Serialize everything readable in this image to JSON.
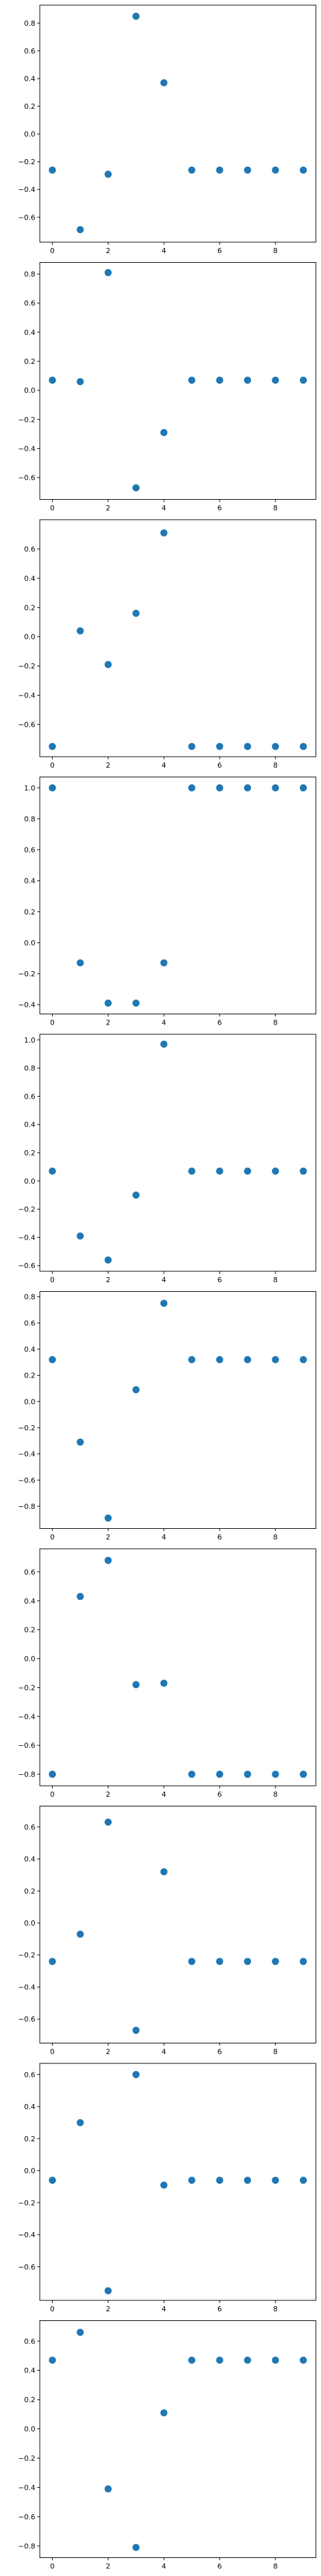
{
  "figure": {
    "background": "#ffffff",
    "marker_color": "#1f77b4",
    "axes_color": "#000000",
    "layout": "10 vertically stacked scatter subplots"
  },
  "chart_data": [
    {
      "type": "scatter",
      "title": "",
      "xlabel": "",
      "ylabel": "",
      "grid": false,
      "legend": "none",
      "xlim": [
        -0.45,
        9.45
      ],
      "ylim": [
        -0.78,
        0.93
      ],
      "xticks": [
        0,
        2,
        4,
        6,
        8
      ],
      "xtick_labels": [
        "0",
        "2",
        "4",
        "6",
        "8"
      ],
      "yticks": [
        -0.6,
        -0.4,
        -0.2,
        0.0,
        0.2,
        0.4,
        0.6,
        0.8
      ],
      "ytick_labels": [
        "−0.6",
        "−0.4",
        "−0.2",
        "0.0",
        "0.2",
        "0.4",
        "0.6",
        "0.8"
      ],
      "series": [
        {
          "x": [
            0,
            1,
            2,
            3,
            4,
            5,
            6,
            7,
            8,
            9
          ],
          "y": [
            -0.26,
            -0.69,
            -0.29,
            0.85,
            0.37,
            -0.26,
            -0.26,
            -0.26,
            -0.26,
            -0.26
          ]
        }
      ]
    },
    {
      "type": "scatter",
      "title": "",
      "xlabel": "",
      "ylabel": "",
      "grid": false,
      "legend": "none",
      "xlim": [
        -0.45,
        9.45
      ],
      "ylim": [
        -0.75,
        0.88
      ],
      "xticks": [
        0,
        2,
        4,
        6,
        8
      ],
      "xtick_labels": [
        "0",
        "2",
        "4",
        "6",
        "8"
      ],
      "yticks": [
        -0.6,
        -0.4,
        -0.2,
        0.0,
        0.2,
        0.4,
        0.6,
        0.8
      ],
      "ytick_labels": [
        "−0.6",
        "−0.4",
        "−0.2",
        "0.0",
        "0.2",
        "0.4",
        "0.6",
        "0.8"
      ],
      "series": [
        {
          "x": [
            0,
            1,
            2,
            3,
            4,
            5,
            6,
            7,
            8,
            9
          ],
          "y": [
            0.07,
            0.06,
            0.81,
            -0.67,
            -0.29,
            0.07,
            0.07,
            0.07,
            0.07,
            0.07
          ]
        }
      ]
    },
    {
      "type": "scatter",
      "title": "",
      "xlabel": "",
      "ylabel": "",
      "grid": false,
      "legend": "none",
      "xlim": [
        -0.45,
        9.45
      ],
      "ylim": [
        -0.82,
        0.8
      ],
      "xticks": [
        0,
        2,
        4,
        6,
        8
      ],
      "xtick_labels": [
        "0",
        "2",
        "4",
        "6",
        "8"
      ],
      "yticks": [
        -0.6,
        -0.4,
        -0.2,
        0.0,
        0.2,
        0.4,
        0.6
      ],
      "ytick_labels": [
        "−0.6",
        "−0.4",
        "−0.2",
        "0.0",
        "0.2",
        "0.4",
        "0.6"
      ],
      "series": [
        {
          "x": [
            0,
            1,
            2,
            3,
            4,
            5,
            6,
            7,
            8,
            9
          ],
          "y": [
            -0.75,
            0.04,
            -0.19,
            0.16,
            0.71,
            -0.75,
            -0.75,
            -0.75,
            -0.75,
            -0.75
          ]
        }
      ]
    },
    {
      "type": "scatter",
      "title": "",
      "xlabel": "",
      "ylabel": "",
      "grid": false,
      "legend": "none",
      "xlim": [
        -0.45,
        9.45
      ],
      "ylim": [
        -0.46,
        1.07
      ],
      "xticks": [
        0,
        2,
        4,
        6,
        8
      ],
      "xtick_labels": [
        "0",
        "2",
        "4",
        "6",
        "8"
      ],
      "yticks": [
        -0.4,
        -0.2,
        0.0,
        0.2,
        0.4,
        0.6,
        0.8,
        1.0
      ],
      "ytick_labels": [
        "−0.4",
        "−0.2",
        "0.0",
        "0.2",
        "0.4",
        "0.6",
        "0.8",
        "1.0"
      ],
      "series": [
        {
          "x": [
            0,
            1,
            2,
            3,
            4,
            5,
            6,
            7,
            8,
            9
          ],
          "y": [
            1.0,
            -0.13,
            -0.39,
            -0.39,
            -0.13,
            1.0,
            1.0,
            1.0,
            1.0,
            1.0
          ]
        }
      ]
    },
    {
      "type": "scatter",
      "title": "",
      "xlabel": "",
      "ylabel": "",
      "grid": false,
      "legend": "none",
      "xlim": [
        -0.45,
        9.45
      ],
      "ylim": [
        -0.64,
        1.04
      ],
      "xticks": [
        0,
        2,
        4,
        6,
        8
      ],
      "xtick_labels": [
        "0",
        "2",
        "4",
        "6",
        "8"
      ],
      "yticks": [
        -0.6,
        -0.4,
        -0.2,
        0.0,
        0.2,
        0.4,
        0.6,
        0.8,
        1.0
      ],
      "ytick_labels": [
        "−0.6",
        "−0.4",
        "−0.2",
        "0.0",
        "0.2",
        "0.4",
        "0.6",
        "0.8",
        "1.0"
      ],
      "series": [
        {
          "x": [
            0,
            1,
            2,
            3,
            4,
            5,
            6,
            7,
            8,
            9
          ],
          "y": [
            0.07,
            -0.39,
            -0.56,
            -0.1,
            0.97,
            0.07,
            0.07,
            0.07,
            0.07,
            0.07
          ]
        }
      ]
    },
    {
      "type": "scatter",
      "title": "",
      "xlabel": "",
      "ylabel": "",
      "grid": false,
      "legend": "none",
      "xlim": [
        -0.45,
        9.45
      ],
      "ylim": [
        -0.97,
        0.84
      ],
      "xticks": [
        0,
        2,
        4,
        6,
        8
      ],
      "xtick_labels": [
        "0",
        "2",
        "4",
        "6",
        "8"
      ],
      "yticks": [
        -0.8,
        -0.6,
        -0.4,
        -0.2,
        0.0,
        0.2,
        0.4,
        0.6,
        0.8
      ],
      "ytick_labels": [
        "−0.8",
        "−0.6",
        "−0.4",
        "−0.2",
        "0.0",
        "0.2",
        "0.4",
        "0.6",
        "0.8"
      ],
      "series": [
        {
          "x": [
            0,
            1,
            2,
            3,
            4,
            5,
            6,
            7,
            8,
            9
          ],
          "y": [
            0.32,
            -0.31,
            -0.89,
            0.09,
            0.75,
            0.32,
            0.32,
            0.32,
            0.32,
            0.32
          ]
        }
      ]
    },
    {
      "type": "scatter",
      "title": "",
      "xlabel": "",
      "ylabel": "",
      "grid": false,
      "legend": "none",
      "xlim": [
        -0.45,
        9.45
      ],
      "ylim": [
        -0.88,
        0.76
      ],
      "xticks": [
        0,
        2,
        4,
        6,
        8
      ],
      "xtick_labels": [
        "0",
        "2",
        "4",
        "6",
        "8"
      ],
      "yticks": [
        -0.8,
        -0.6,
        -0.4,
        -0.2,
        0.0,
        0.2,
        0.4,
        0.6
      ],
      "ytick_labels": [
        "−0.8",
        "−0.6",
        "−0.4",
        "−0.2",
        "0.0",
        "0.2",
        "0.4",
        "0.6"
      ],
      "series": [
        {
          "x": [
            0,
            1,
            2,
            3,
            4,
            5,
            6,
            7,
            8,
            9
          ],
          "y": [
            -0.8,
            0.43,
            0.68,
            -0.18,
            -0.17,
            -0.8,
            -0.8,
            -0.8,
            -0.8,
            -0.8
          ]
        }
      ]
    },
    {
      "type": "scatter",
      "title": "",
      "xlabel": "",
      "ylabel": "",
      "grid": false,
      "legend": "none",
      "xlim": [
        -0.45,
        9.45
      ],
      "ylim": [
        -0.75,
        0.73
      ],
      "xticks": [
        0,
        2,
        4,
        6,
        8
      ],
      "xtick_labels": [
        "0",
        "2",
        "4",
        "6",
        "8"
      ],
      "yticks": [
        -0.6,
        -0.4,
        -0.2,
        0.0,
        0.2,
        0.4,
        0.6
      ],
      "ytick_labels": [
        "−0.6",
        "−0.4",
        "−0.2",
        "0.0",
        "0.2",
        "0.4",
        "0.6"
      ],
      "series": [
        {
          "x": [
            0,
            1,
            2,
            3,
            4,
            5,
            6,
            7,
            8,
            9
          ],
          "y": [
            -0.24,
            -0.07,
            0.63,
            -0.67,
            0.32,
            -0.24,
            -0.24,
            -0.24,
            -0.24,
            -0.24
          ]
        }
      ]
    },
    {
      "type": "scatter",
      "title": "",
      "xlabel": "",
      "ylabel": "",
      "grid": false,
      "legend": "none",
      "xlim": [
        -0.45,
        9.45
      ],
      "ylim": [
        -0.81,
        0.67
      ],
      "xticks": [
        0,
        2,
        4,
        6,
        8
      ],
      "xtick_labels": [
        "0",
        "2",
        "4",
        "6",
        "8"
      ],
      "yticks": [
        -0.6,
        -0.4,
        -0.2,
        0.0,
        0.2,
        0.4,
        0.6
      ],
      "ytick_labels": [
        "−0.6",
        "−0.4",
        "−0.2",
        "0.0",
        "0.2",
        "0.4",
        "0.6"
      ],
      "series": [
        {
          "x": [
            0,
            1,
            2,
            3,
            4,
            5,
            6,
            7,
            8,
            9
          ],
          "y": [
            -0.06,
            0.3,
            -0.75,
            0.6,
            -0.09,
            -0.06,
            -0.06,
            -0.06,
            -0.06,
            -0.06
          ]
        }
      ]
    },
    {
      "type": "scatter",
      "title": "",
      "xlabel": "",
      "ylabel": "",
      "grid": false,
      "legend": "none",
      "xlim": [
        -0.45,
        9.45
      ],
      "ylim": [
        -0.88,
        0.74
      ],
      "xticks": [
        0,
        2,
        4,
        6,
        8
      ],
      "xtick_labels": [
        "0",
        "2",
        "4",
        "6",
        "8"
      ],
      "yticks": [
        -0.8,
        -0.6,
        -0.4,
        -0.2,
        0.0,
        0.2,
        0.4,
        0.6
      ],
      "ytick_labels": [
        "−0.8",
        "−0.6",
        "−0.4",
        "−0.2",
        "0.0",
        "0.2",
        "0.4",
        "0.6"
      ],
      "series": [
        {
          "x": [
            0,
            1,
            2,
            3,
            4,
            5,
            6,
            7,
            8,
            9
          ],
          "y": [
            0.47,
            0.66,
            -0.41,
            -0.81,
            0.11,
            0.47,
            0.47,
            0.47,
            0.47,
            0.47
          ]
        }
      ]
    }
  ]
}
